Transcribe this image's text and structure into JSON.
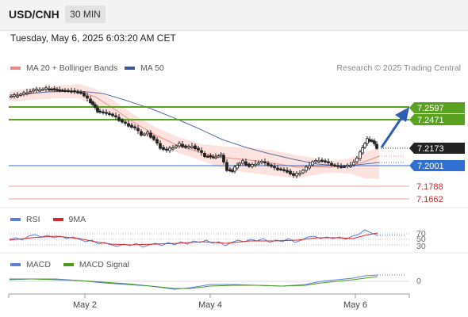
{
  "header": {
    "symbol": "USD/CNH",
    "timeframe": "30 MIN"
  },
  "datetime": "Tuesday, May 6, 2025 6:03:20 AM CET",
  "legend": {
    "ma_bb": {
      "label": "MA 20 + Bollinger Bands",
      "color": "#f08a80"
    },
    "ma50": {
      "label": "MA 50",
      "color": "#3b5998"
    }
  },
  "research": "Research © 2025 Trading Central",
  "levels": [
    {
      "label": "7.2597",
      "kind": "resistance",
      "color": "#5aa11f"
    },
    {
      "label": "7.2471",
      "kind": "resistance",
      "color": "#5aa11f"
    },
    {
      "label": "7.2173",
      "kind": "current",
      "color": "#222222"
    },
    {
      "label": "7.2001",
      "kind": "pivot",
      "color": "#2f6fd1"
    },
    {
      "label": "7.1788",
      "kind": "support",
      "color": "#d9262a"
    },
    {
      "label": "7.1662",
      "kind": "support",
      "color": "#d9262a"
    }
  ],
  "rsi": {
    "legend": {
      "rsi": "RSI",
      "ma": "9MA"
    },
    "levels": [
      "70",
      "50",
      "30"
    ]
  },
  "macd": {
    "legend": {
      "macd": "MACD",
      "signal": "MACD Signal"
    },
    "zero": "0"
  },
  "xaxis": {
    "ticks": [
      "May 2",
      "May 4",
      "May 6"
    ]
  }
}
